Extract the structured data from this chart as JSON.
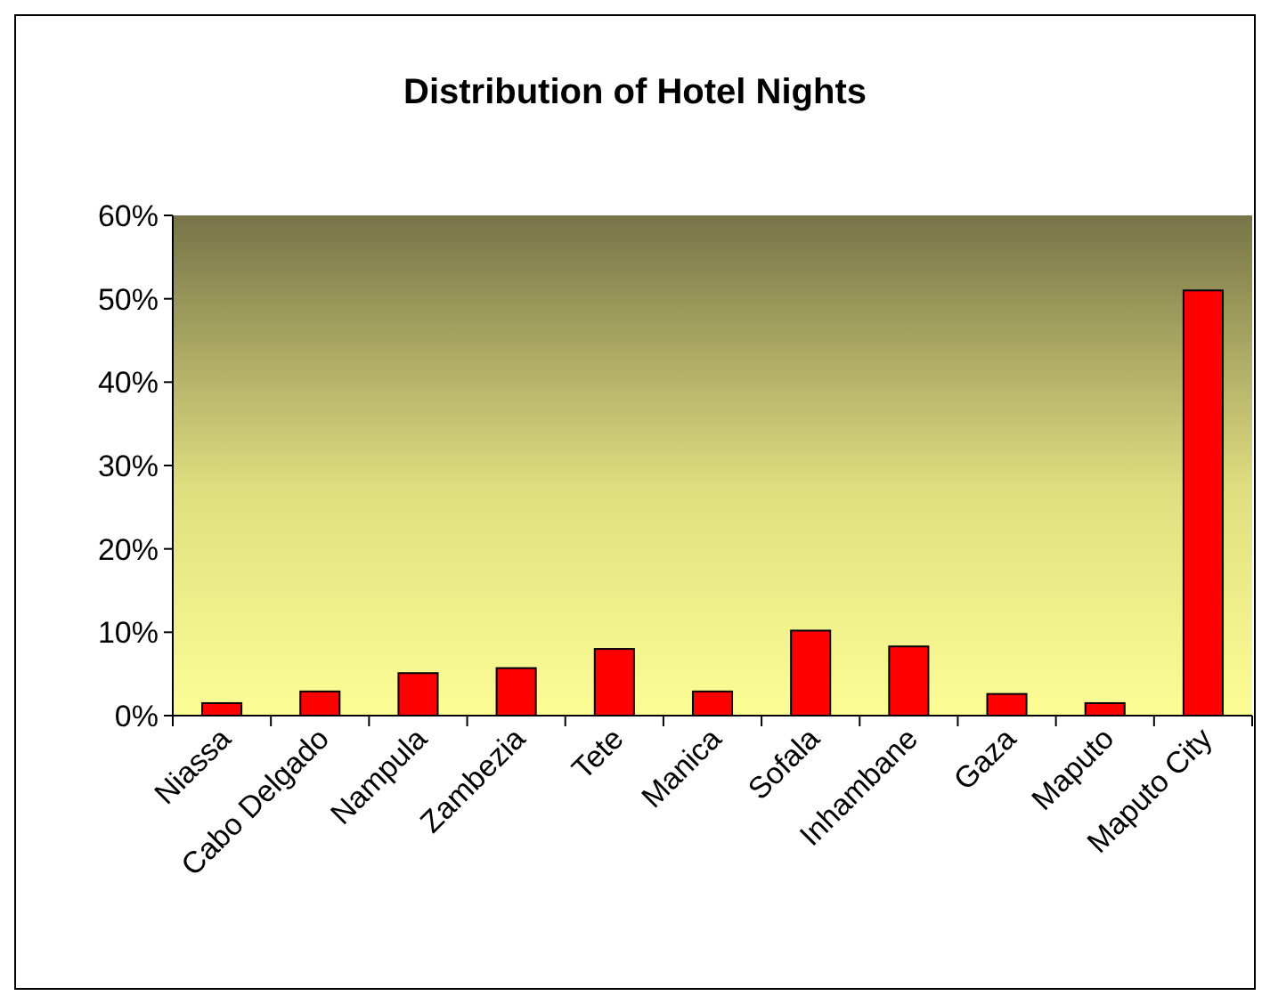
{
  "chart_data": {
    "type": "bar",
    "title": "Distribution of Hotel Nights",
    "categories": [
      "Niassa",
      "Cabo Delgado",
      "Nampula",
      "Zambezia",
      "Tete",
      "Manica",
      "Sofala",
      "Inhambane",
      "Gaza",
      "Maputo",
      "Maputo City"
    ],
    "values": [
      1.5,
      2.9,
      5.1,
      5.7,
      8.0,
      2.9,
      10.2,
      8.3,
      2.6,
      1.5,
      51.0
    ],
    "color": "#ff0000",
    "ylim": [
      0,
      60
    ],
    "yticks": [
      {
        "value": 0,
        "label": "0%"
      },
      {
        "value": 10,
        "label": "10%"
      },
      {
        "value": 20,
        "label": "20%"
      },
      {
        "value": 30,
        "label": "30%"
      },
      {
        "value": 40,
        "label": "40%"
      },
      {
        "value": 50,
        "label": "50%"
      },
      {
        "value": 60,
        "label": "60%"
      }
    ],
    "grid": false
  }
}
